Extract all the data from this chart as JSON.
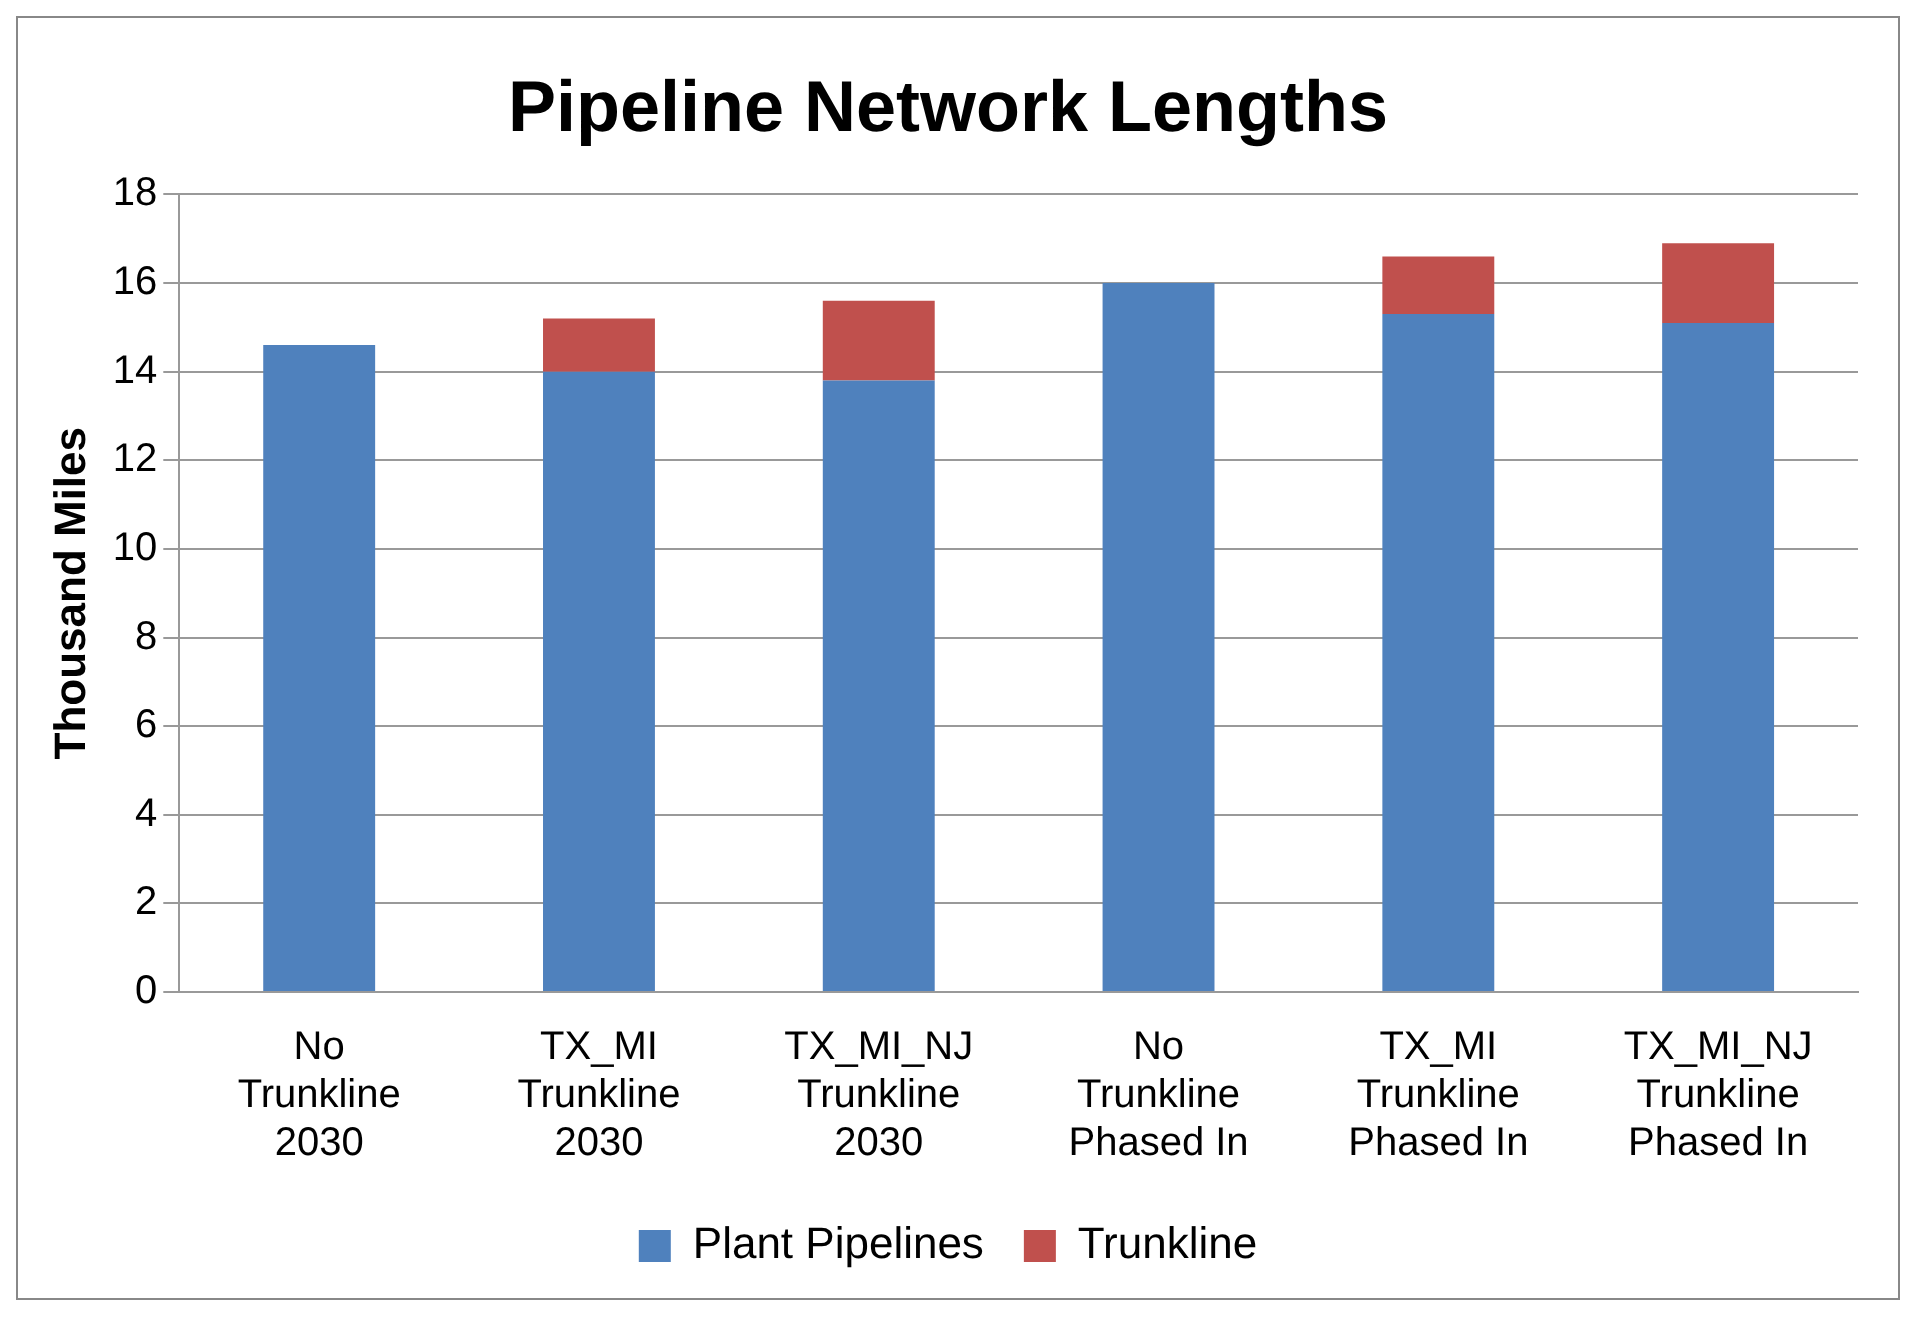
{
  "chart_data": {
    "type": "bar",
    "title": "Pipeline Network Lengths",
    "ylabel": "Thousand Miles",
    "categories": [
      "No Trunkline 2030",
      "TX_MI Trunkline 2030",
      "TX_MI_NJ Trunkline 2030",
      "No Trunkline Phased In",
      "TX_MI Trunkline Phased In",
      "TX_MI_NJ Trunkline Phased In"
    ],
    "stacked": true,
    "series": [
      {
        "name": "Plant Pipelines",
        "color": "#4f81bd",
        "values": [
          14.6,
          14.0,
          13.8,
          16.0,
          15.3,
          15.1
        ]
      },
      {
        "name": "Trunkline",
        "color": "#c0504d",
        "values": [
          0,
          1.2,
          1.8,
          0,
          1.3,
          1.8
        ]
      }
    ],
    "ylim": [
      0,
      18
    ],
    "yticks": [
      0,
      2,
      4,
      6,
      8,
      10,
      12,
      14,
      16,
      18
    ],
    "grid": "y",
    "legend": "bottom"
  }
}
